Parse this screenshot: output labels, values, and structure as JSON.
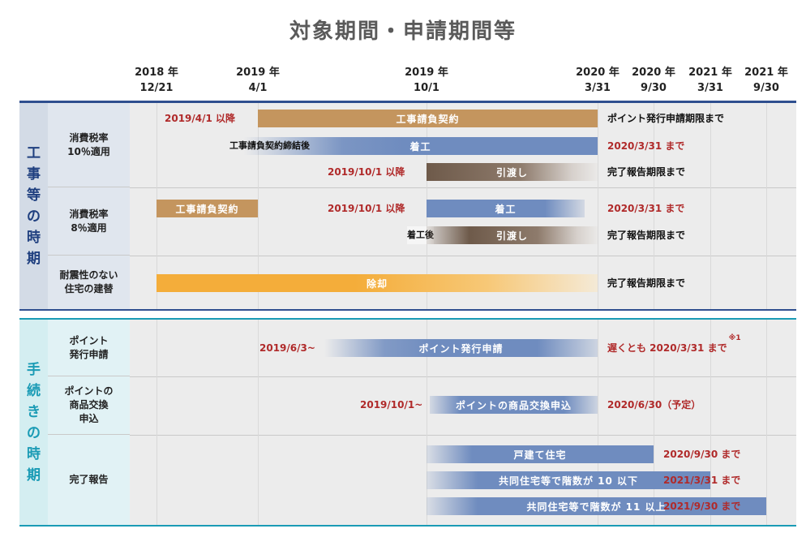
{
  "title": "対象期間・申請期間等",
  "dates": [
    {
      "year": "2018 年",
      "md": "12/21"
    },
    {
      "year": "2019 年",
      "md": "4/1"
    },
    {
      "year": "2019 年",
      "md": "10/1"
    },
    {
      "year": "2020 年",
      "md": "3/31"
    },
    {
      "year": "2020 年",
      "md": "9/30"
    },
    {
      "year": "2021 年",
      "md": "3/31"
    },
    {
      "year": "2021 年",
      "md": "9/30"
    }
  ],
  "sections": {
    "construction": {
      "label": "工事等の時期",
      "rows": {
        "r1": "消費税率\n10％適用",
        "r2": "消費税率\n8％適用",
        "r3": "耐震性のない\n住宅の建替"
      }
    },
    "procedure": {
      "label": "手続きの時期",
      "rows": {
        "r1": "ポイント\n発行申請",
        "r2": "ポイントの\n商品交換\n申込",
        "r3": "完了報告"
      }
    }
  },
  "bars": {
    "c10_contract": "工事請負契約",
    "c10_start": "着工",
    "c10_handover": "引渡し",
    "c8_contract": "工事請負契約",
    "c8_start": "着工",
    "c8_handover": "引渡し",
    "demolition": "除却",
    "point_issue": "ポイント発行申請",
    "point_exchange": "ポイントの商品交換申込",
    "detached": "戸建て住宅",
    "multi_10": "共同住宅等で階数が 10 以下",
    "multi_11": "共同住宅等で階数が 11 以上"
  },
  "notes": {
    "c10_contract_from": "2019/4/1 以降",
    "c10_contract_until": "ポイント発行申請期限まで",
    "c10_after_contract": "工事請負契約締結後",
    "c10_start_until": "2020/3/31 まで",
    "c10_handover_from": "2019/10/1 以降",
    "c10_handover_until": "完了報告期限まで",
    "c8_start_from": "2019/10/1 以降",
    "c8_start_until": "2020/3/31 まで",
    "c8_after_start": "着工後",
    "c8_handover_until": "完了報告期限まで",
    "demolition_until": "完了報告期限まで",
    "point_issue_from": "2019/6/3~",
    "point_issue_until": "遅くとも 2020/3/31 まで",
    "point_issue_note": "※1",
    "point_exchange_from": "2019/10/1~",
    "point_exchange_until": "2020/6/30（予定）",
    "detached_until": "2020/9/30 まで",
    "multi_10_until": "2021/3/31 まで",
    "multi_11_until": "2021/9/30 まで"
  },
  "colors": {
    "contract": "#c4955e",
    "blue": "#6f8cbf",
    "brown": "#6e5a4a",
    "orange": "#f4ad3a",
    "red": "#b02a2a",
    "navy": "#1f3f7f",
    "teal": "#1a9bb5"
  }
}
